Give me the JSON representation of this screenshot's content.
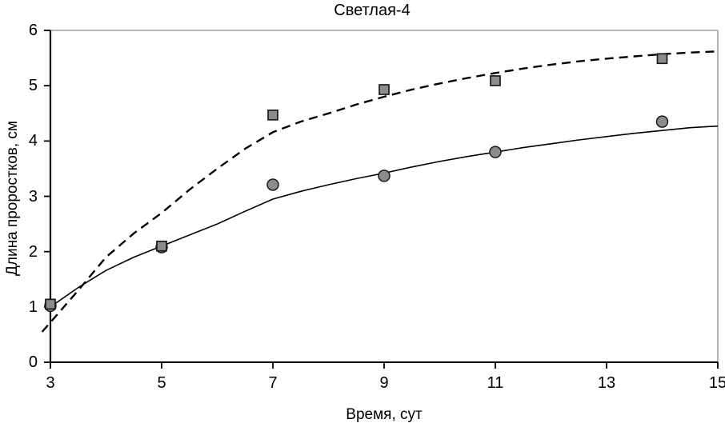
{
  "title": "Светлая-4",
  "axes": {
    "x_label": "Время, сут",
    "y_label": "Длина проростков, см"
  },
  "colors": {
    "background": "#ffffff",
    "text": "#000000",
    "axis": "#000000",
    "frame_border": "#a0a0a0",
    "marker_fill": "#8c8c8c",
    "marker_stroke": "#1a1a1a",
    "line": "#000000"
  },
  "chart_data": {
    "type": "scatter",
    "title": "Светлая-4",
    "xlabel": "Время, сут",
    "ylabel": "Длина проростков, см",
    "xlim": [
      3,
      15
    ],
    "ylim": [
      0,
      6
    ],
    "x_ticks": [
      3,
      5,
      7,
      9,
      11,
      13,
      15
    ],
    "y_ticks": [
      0,
      1,
      2,
      3,
      4,
      5,
      6
    ],
    "grid": false,
    "legend_position": "none",
    "frame": true,
    "series": [
      {
        "name": "series-circles-solid",
        "marker": "circle",
        "line_style": "solid",
        "line_color": "#000000",
        "marker_fill": "#8c8c8c",
        "marker_stroke": "#1a1a1a",
        "points": [
          [
            3,
            1.02
          ],
          [
            5,
            2.08
          ],
          [
            7,
            3.21
          ],
          [
            9,
            3.37
          ],
          [
            11,
            3.8
          ],
          [
            14,
            4.35
          ]
        ],
        "trend": [
          [
            3.0,
            1.0
          ],
          [
            3.5,
            1.35
          ],
          [
            4.0,
            1.66
          ],
          [
            4.5,
            1.9
          ],
          [
            5.0,
            2.1
          ],
          [
            5.5,
            2.3
          ],
          [
            6.0,
            2.5
          ],
          [
            6.5,
            2.73
          ],
          [
            7.0,
            2.95
          ],
          [
            7.5,
            3.09
          ],
          [
            8.0,
            3.21
          ],
          [
            8.5,
            3.32
          ],
          [
            9.0,
            3.42
          ],
          [
            9.5,
            3.53
          ],
          [
            10.0,
            3.63
          ],
          [
            10.5,
            3.72
          ],
          [
            11.0,
            3.8
          ],
          [
            11.5,
            3.88
          ],
          [
            12.0,
            3.95
          ],
          [
            12.5,
            4.02
          ],
          [
            13.0,
            4.08
          ],
          [
            13.5,
            4.14
          ],
          [
            14.0,
            4.19
          ],
          [
            14.5,
            4.24
          ],
          [
            15.0,
            4.27
          ]
        ]
      },
      {
        "name": "series-squares-dashed",
        "marker": "square",
        "line_style": "dashed",
        "line_color": "#000000",
        "marker_fill": "#8c8c8c",
        "marker_stroke": "#1a1a1a",
        "points": [
          [
            3,
            1.05
          ],
          [
            5,
            2.1
          ],
          [
            7,
            4.47
          ],
          [
            9,
            4.93
          ],
          [
            11,
            5.09
          ],
          [
            14,
            5.49
          ]
        ],
        "trend": [
          [
            2.85,
            0.55
          ],
          [
            3.0,
            0.72
          ],
          [
            3.5,
            1.3
          ],
          [
            4.0,
            1.9
          ],
          [
            4.5,
            2.33
          ],
          [
            5.0,
            2.7
          ],
          [
            5.5,
            3.12
          ],
          [
            6.0,
            3.5
          ],
          [
            6.5,
            3.86
          ],
          [
            7.0,
            4.16
          ],
          [
            7.5,
            4.35
          ],
          [
            8.0,
            4.5
          ],
          [
            8.5,
            4.66
          ],
          [
            9.0,
            4.8
          ],
          [
            9.5,
            4.93
          ],
          [
            10.0,
            5.04
          ],
          [
            10.5,
            5.14
          ],
          [
            11.0,
            5.23
          ],
          [
            11.5,
            5.31
          ],
          [
            12.0,
            5.38
          ],
          [
            12.5,
            5.44
          ],
          [
            13.0,
            5.49
          ],
          [
            13.5,
            5.53
          ],
          [
            14.0,
            5.57
          ],
          [
            14.5,
            5.6
          ],
          [
            15.0,
            5.62
          ]
        ]
      }
    ]
  }
}
